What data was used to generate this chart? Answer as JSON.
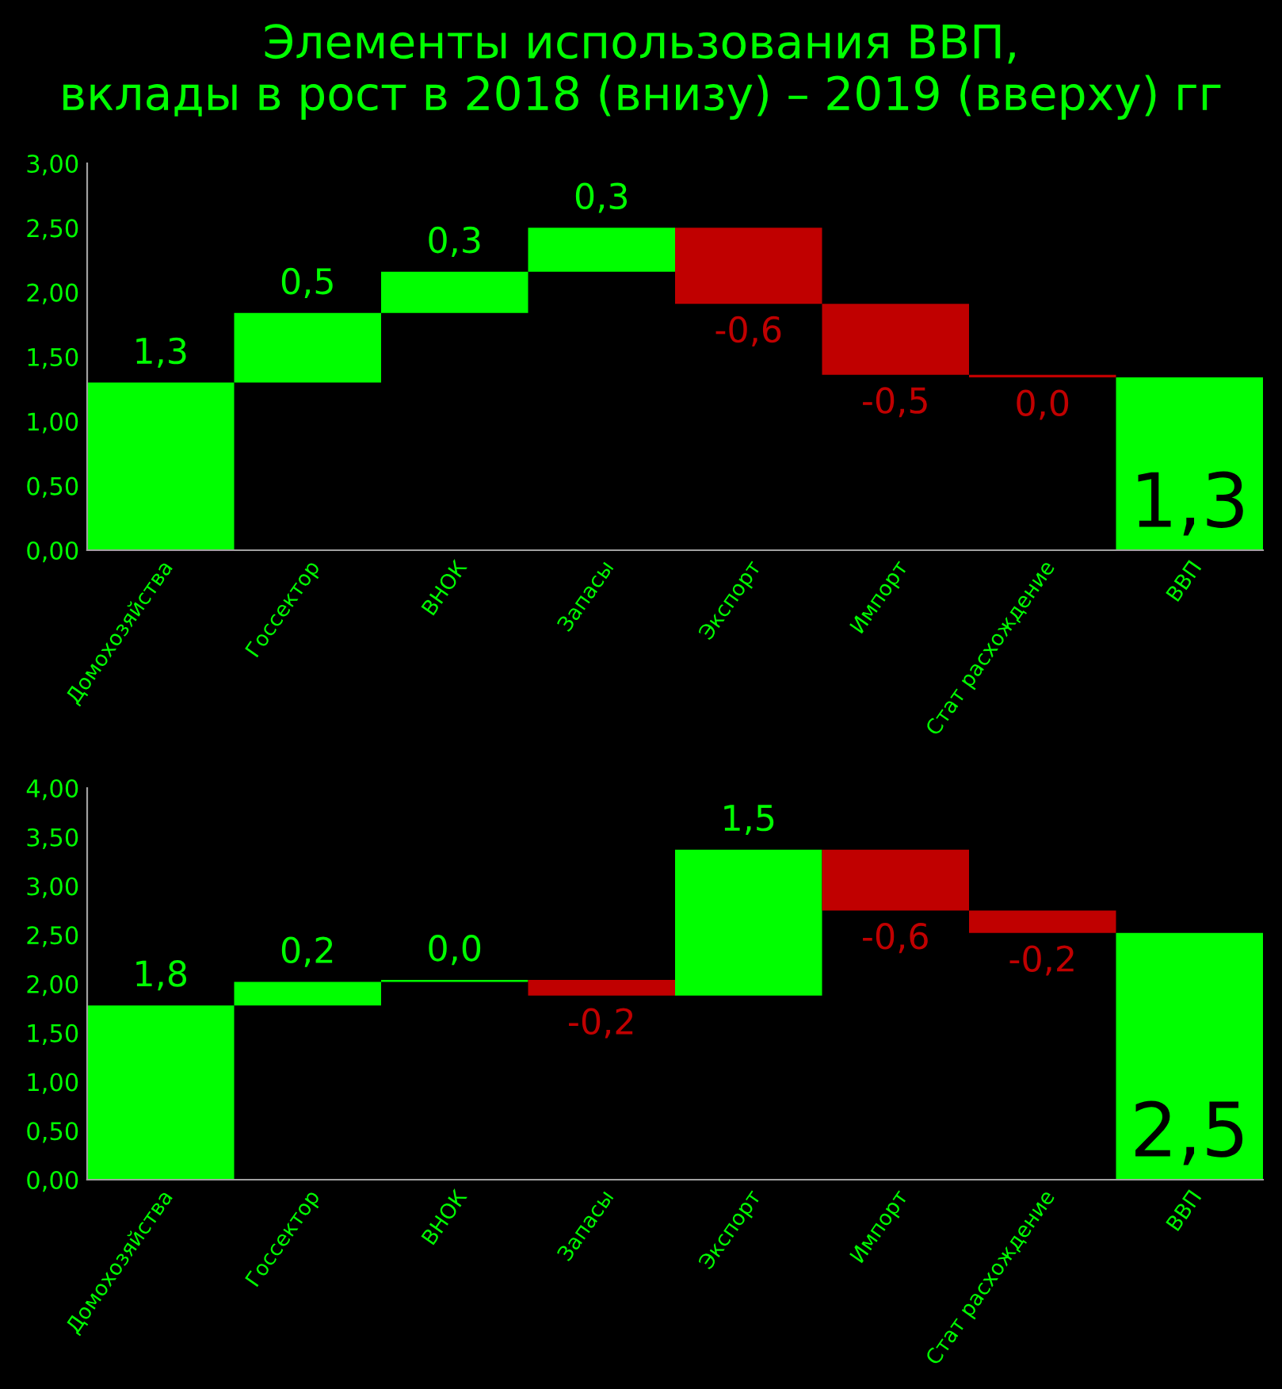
{
  "chart_data": [
    {
      "type": "bar",
      "title": "Элементы использования ВВП,\nвклады в рост в 2018 (внизу) – 2019 (вверху) гг",
      "categories": [
        "Домохозяйства",
        "Госсектор",
        "ВНОК",
        "Запасы",
        "Экспорт",
        "Импорт",
        "Стат расхождение",
        "ВВП"
      ],
      "values": [
        1.3,
        0.54,
        0.32,
        0.34,
        -0.59,
        -0.55,
        -0.02,
        1.34
      ],
      "base": [
        0,
        1.3,
        1.84,
        2.16,
        2.5,
        1.91,
        1.36,
        0
      ],
      "colors": [
        "#00ff00",
        "#00ff00",
        "#00ff00",
        "#00ff00",
        "#c00000",
        "#c00000",
        "#c00000",
        "#00ff00"
      ],
      "value_labels": [
        "1,3",
        "0,5",
        "0,3",
        "0,3",
        "-0,6",
        "-0,5",
        "0,0",
        null
      ],
      "totals": [
        null,
        null,
        null,
        null,
        null,
        null,
        null,
        "1,3"
      ],
      "ylim": [
        0,
        3
      ],
      "yticks": [
        {
          "value": 0,
          "label": "0,00"
        },
        {
          "value": 0.5,
          "label": "0,50"
        },
        {
          "value": 1,
          "label": "1,00"
        },
        {
          "value": 1.5,
          "label": "1,50"
        },
        {
          "value": 2,
          "label": "2,00"
        },
        {
          "value": 2.5,
          "label": "2,50"
        },
        {
          "value": 3,
          "label": "3,00"
        }
      ],
      "grid": false,
      "legend": false
    },
    {
      "type": "bar",
      "categories": [
        "Домохозяйства",
        "Госсектор",
        "ВНОК",
        "Запасы",
        "Экспорт",
        "Импорт",
        "Стат расхождение",
        "ВВП"
      ],
      "values": [
        1.78,
        0.24,
        0.02,
        -0.16,
        1.49,
        -0.62,
        -0.23,
        2.52
      ],
      "base": [
        0,
        1.78,
        2.02,
        2.04,
        1.88,
        3.37,
        2.75,
        0
      ],
      "colors": [
        "#00ff00",
        "#00ff00",
        "#00ff00",
        "#c00000",
        "#00ff00",
        "#c00000",
        "#c00000",
        "#00ff00"
      ],
      "value_labels": [
        "1,8",
        "0,2",
        "0,0",
        "-0,2",
        "1,5",
        "-0,6",
        "-0,2",
        null
      ],
      "totals": [
        null,
        null,
        null,
        null,
        null,
        null,
        null,
        "2,5"
      ],
      "ylim": [
        0,
        4
      ],
      "yticks": [
        {
          "value": 0,
          "label": "0,00"
        },
        {
          "value": 0.5,
          "label": "0,50"
        },
        {
          "value": 1,
          "label": "1,00"
        },
        {
          "value": 1.5,
          "label": "1,50"
        },
        {
          "value": 2,
          "label": "2,00"
        },
        {
          "value": 2.5,
          "label": "2,50"
        },
        {
          "value": 3,
          "label": "3,00"
        },
        {
          "value": 3.5,
          "label": "3,50"
        },
        {
          "value": 4,
          "label": "4,00"
        }
      ],
      "grid": false,
      "legend": false
    }
  ]
}
